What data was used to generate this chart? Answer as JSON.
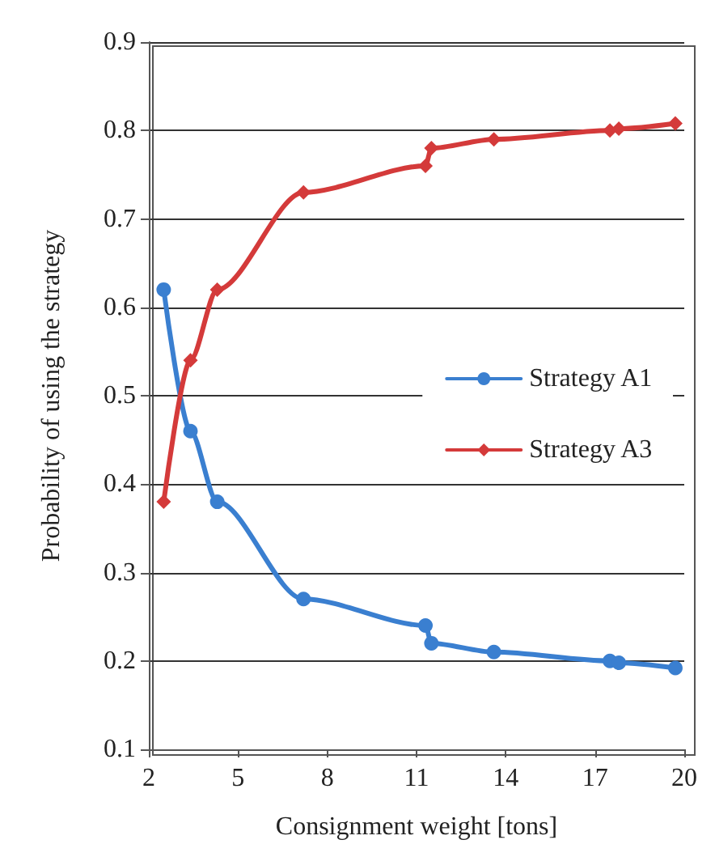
{
  "chart_data": {
    "type": "line",
    "xlabel": "Consignment weight [tons]",
    "ylabel": "Probability of using the strategy",
    "x": [
      2.5,
      3.4,
      4.3,
      7.2,
      11.3,
      11.5,
      13.6,
      17.5,
      17.8,
      19.7
    ],
    "series": [
      {
        "name": "Strategy A1",
        "color": "#3a7fd0",
        "marker": "circle",
        "values": [
          0.62,
          0.46,
          0.38,
          0.27,
          0.24,
          0.22,
          0.21,
          0.2,
          0.198,
          0.192
        ]
      },
      {
        "name": "Strategy A3",
        "color": "#d43a3a",
        "marker": "diamond",
        "values": [
          0.38,
          0.54,
          0.62,
          0.73,
          0.76,
          0.78,
          0.79,
          0.8,
          0.802,
          0.808
        ]
      }
    ],
    "xlim": [
      2,
      20
    ],
    "xticks": [
      2,
      5,
      8,
      11,
      14,
      17,
      20
    ],
    "ylim": [
      0.1,
      0.9
    ],
    "yticks": [
      0.1,
      0.2,
      0.3,
      0.4,
      0.5,
      0.6,
      0.7,
      0.8,
      0.9
    ],
    "grid": "y",
    "legend": "right",
    "line_style": "solid"
  }
}
